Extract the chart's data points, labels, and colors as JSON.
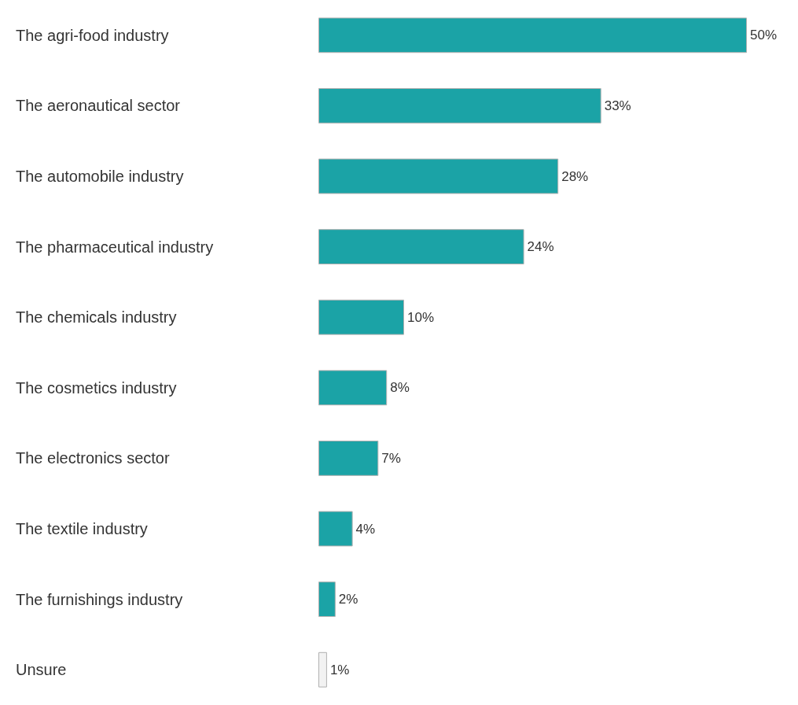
{
  "chart_data": {
    "type": "bar",
    "orientation": "horizontal",
    "categories": [
      "The agri-food industry",
      "The aeronautical sector",
      "The automobile industry",
      "The pharmaceutical industry",
      "The chemicals industry",
      "The cosmetics industry",
      "The electronics sector",
      "The textile industry",
      "The furnishings industry",
      "Unsure"
    ],
    "values": [
      50,
      33,
      28,
      24,
      10,
      8,
      7,
      4,
      2,
      1
    ],
    "colors": [
      "#1ba3a6",
      "#1ba3a6",
      "#1ba3a6",
      "#1ba3a6",
      "#1ba3a6",
      "#1ba3a6",
      "#1ba3a6",
      "#1ba3a6",
      "#1ba3a6",
      "#f2f2f2"
    ],
    "value_labels": [
      "50%",
      "33%",
      "28%",
      "24%",
      "10%",
      "8%",
      "7%",
      "4%",
      "2%",
      "1%"
    ]
  }
}
